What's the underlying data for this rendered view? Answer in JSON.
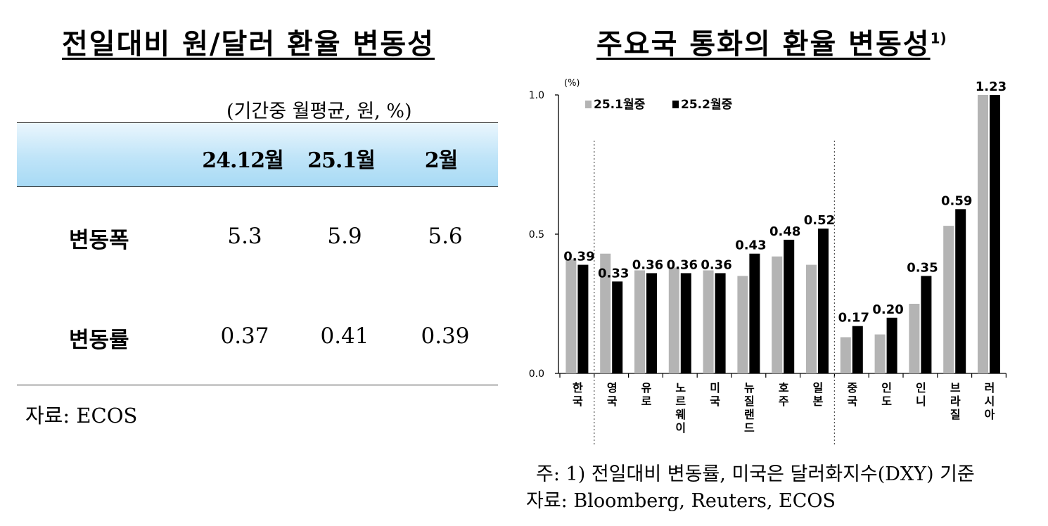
{
  "left": {
    "title": "전일대비 원/달러 환율 변동성",
    "unit_note": "(기간중 월평균, 원, %)",
    "table": {
      "columns": [
        "24.12월",
        "25.1월",
        "2월"
      ],
      "rows": [
        {
          "label": "변동폭",
          "values": [
            "5.3",
            "5.9",
            "5.6"
          ]
        },
        {
          "label": "변동률",
          "values": [
            "0.37",
            "0.41",
            "0.39"
          ]
        }
      ]
    },
    "source": "자료: ECOS"
  },
  "right": {
    "title": "주요국 통화의 환율 변동성",
    "title_sup": "1)",
    "footnote": "주: 1) 전일대비 변동률, 미국은 달러화지수(DXY) 기준",
    "source": "자료: Bloomberg, Reuters, ECOS"
  },
  "chart_data": {
    "type": "bar",
    "title": "주요국 통화의 환율 변동성",
    "ylabel": "(%)",
    "ylim": [
      0.0,
      1.0
    ],
    "yticks": [
      "0.0",
      "0.5",
      "1.0"
    ],
    "categories": [
      "한국",
      "영국",
      "유로",
      "노르웨이",
      "미국",
      "뉴질랜드",
      "호주",
      "일본",
      "중국",
      "인도",
      "인니",
      "브라질",
      "러시아"
    ],
    "group_separators_after": [
      "한국",
      "일본"
    ],
    "legend_position": "top-left",
    "series": [
      {
        "name": "25.1월중",
        "color": "#b4b4b4",
        "values": [
          0.41,
          0.43,
          0.37,
          0.38,
          0.37,
          0.35,
          0.42,
          0.39,
          0.13,
          0.14,
          0.25,
          0.53,
          1.23
        ]
      },
      {
        "name": "25.2월중",
        "color": "#000000",
        "values": [
          0.39,
          0.33,
          0.36,
          0.36,
          0.36,
          0.43,
          0.48,
          0.52,
          0.17,
          0.2,
          0.35,
          0.59,
          1.23
        ]
      }
    ],
    "data_labels": [
      "0.39",
      "0.33",
      "0.36",
      "0.36",
      "0.36",
      "0.43",
      "0.48",
      "0.52",
      "0.17",
      "0.20",
      "0.35",
      "0.59",
      "1.23"
    ]
  }
}
